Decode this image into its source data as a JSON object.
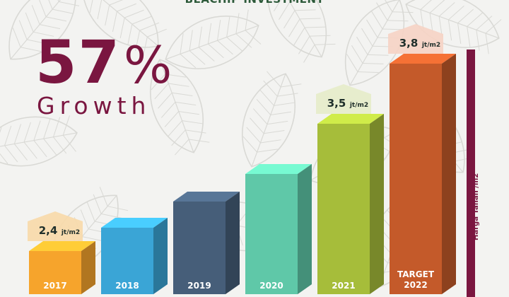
{
  "header": {
    "title": "BEACHIP INVESTMENT"
  },
  "growth": {
    "value": "57",
    "percent": "%",
    "label": "Growth"
  },
  "side_label": {
    "text": "Harga Tanah /m2"
  },
  "colors": {
    "accent": "#7a1640",
    "leaf": "#d9d9d5",
    "bars": [
      "#f6a42c",
      "#3aa5d6",
      "#465e79",
      "#5fc8a8",
      "#a6bd3a",
      "#c45a2a"
    ],
    "callouts": [
      "#f8d9a8",
      "#e6ecc9",
      "#f6d3c4"
    ]
  },
  "chart_data": {
    "type": "bar",
    "categories": [
      "2017",
      "2018",
      "2019",
      "2020",
      "2021",
      "TARGET 2022"
    ],
    "values": [
      2.4,
      null,
      null,
      null,
      3.5,
      3.8
    ],
    "data_labels": [
      "2,4 jt/m2",
      "",
      "",
      "",
      "3,5 jt/m2",
      "3,8 jt/m2"
    ],
    "ylabel": "Harga Tanah /m2",
    "unit": "jt/m2",
    "grid": false,
    "legend": "none",
    "callouts": [
      {
        "category": "2017",
        "value": "2,4",
        "unit": "jt/m2"
      },
      {
        "category": "2021",
        "value": "3,5",
        "unit": "jt/m2"
      },
      {
        "category": "TARGET 2022",
        "value": "3,8",
        "unit": "jt/m2"
      }
    ]
  }
}
